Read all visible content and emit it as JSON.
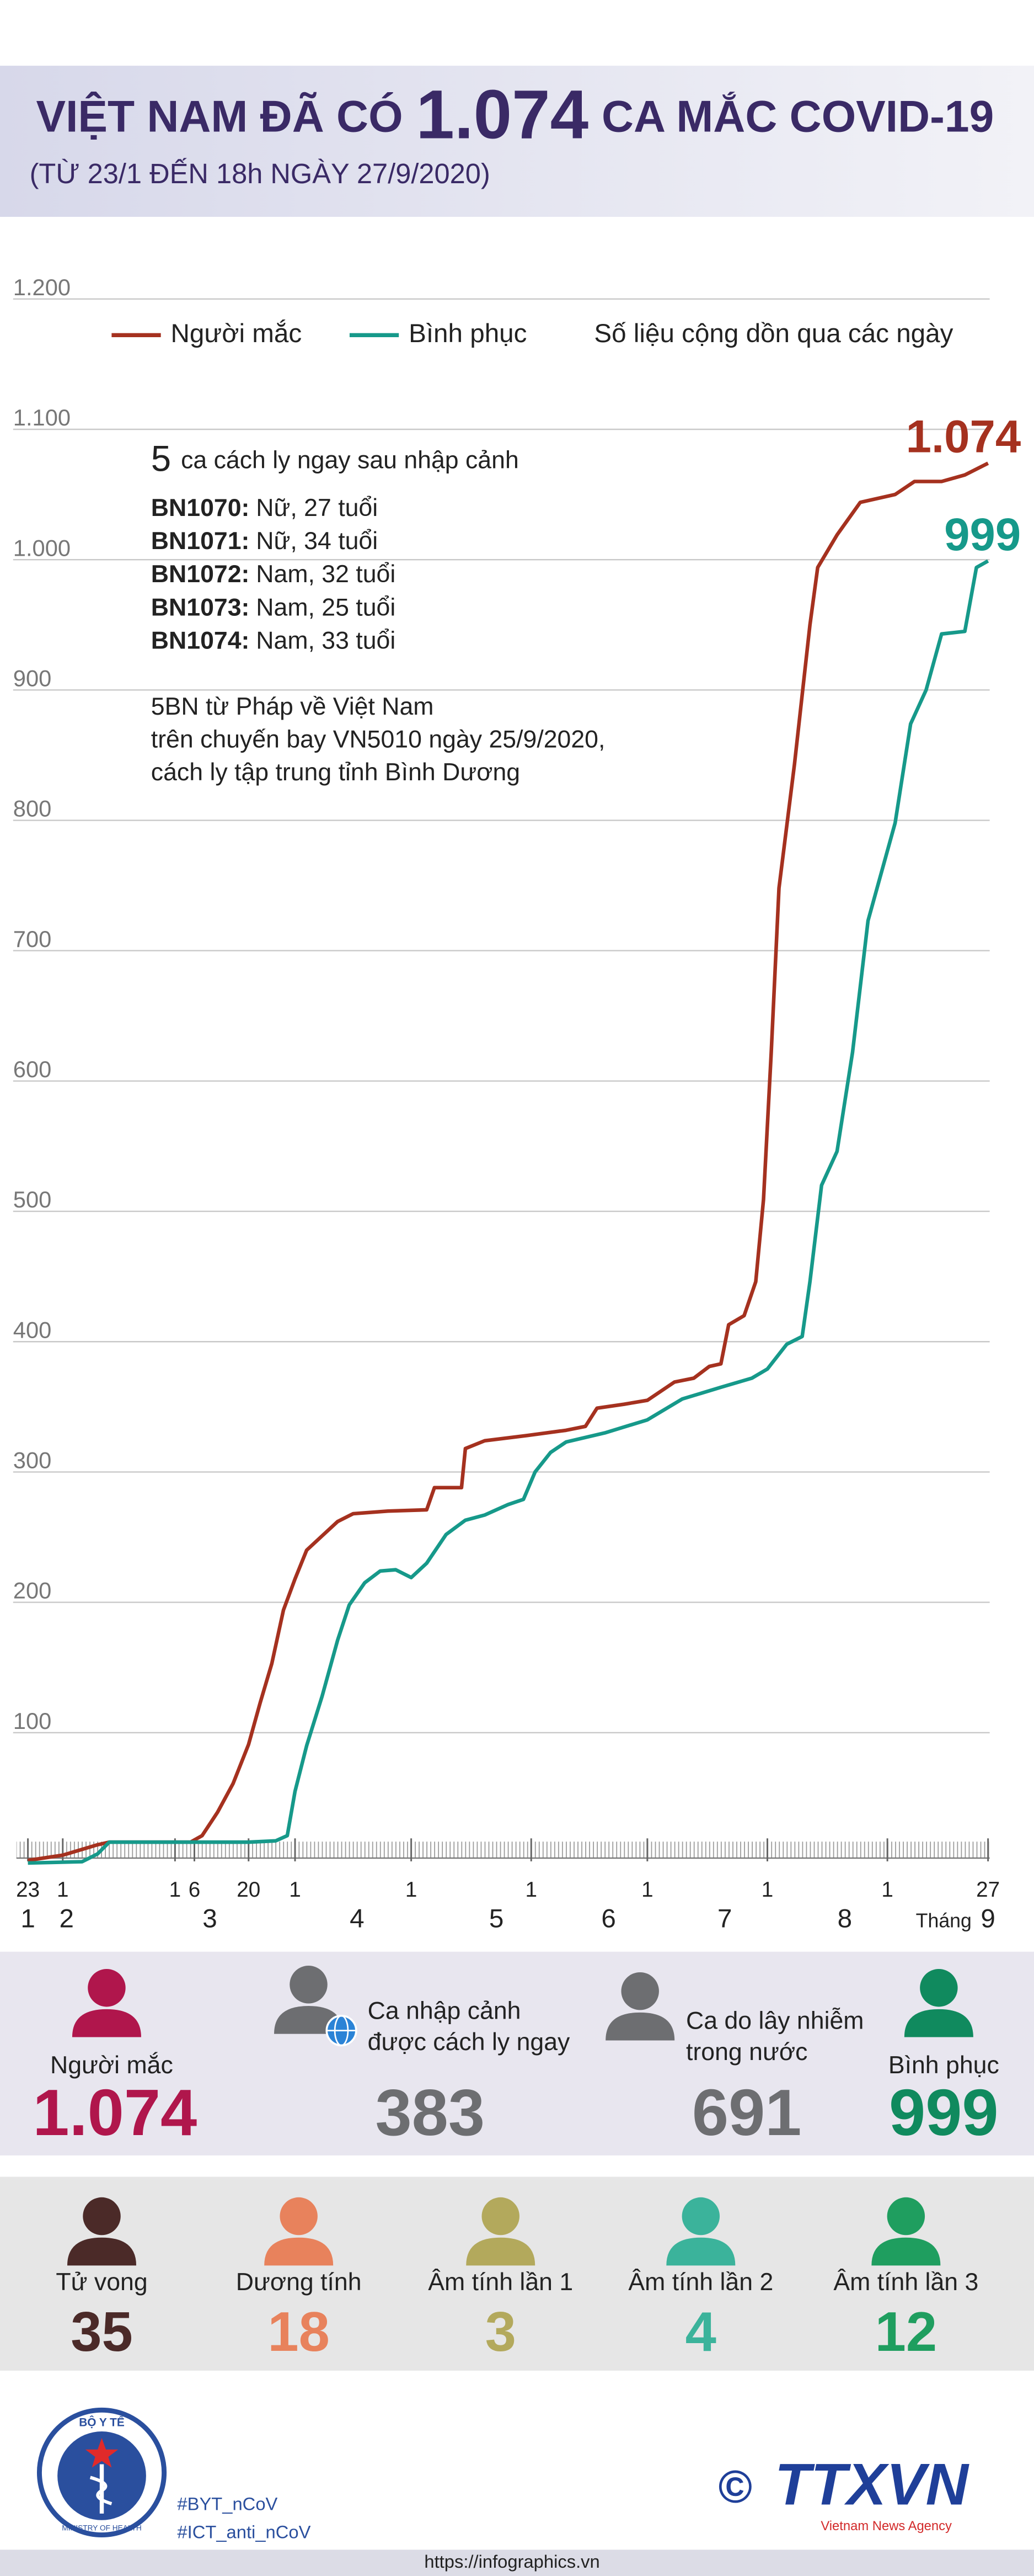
{
  "header": {
    "title_prefix": "VIỆT NAM ĐÃ CÓ",
    "title_number": "1.074",
    "title_suffix": "CA MẮC COVID-19",
    "subtitle": "(TỪ 23/1 ĐẾN 18h NGÀY 27/9/2020)"
  },
  "chart_data": {
    "type": "line",
    "note": "Số liệu cộng dồn qua các ngày",
    "xlim": [
      "23/1",
      "27/9"
    ],
    "xticks": [
      {
        "value": "23/1",
        "label": "23"
      },
      {
        "value": "1/2",
        "label": "1"
      },
      {
        "value": "1/3",
        "label": "1"
      },
      {
        "value": "6/3",
        "label": "6"
      },
      {
        "value": "20/3",
        "label": "20"
      },
      {
        "value": "1/4",
        "label": "1"
      },
      {
        "value": "1/5",
        "label": "1"
      },
      {
        "value": "1/6",
        "label": "1"
      },
      {
        "value": "1/7",
        "label": "1"
      },
      {
        "value": "1/8",
        "label": "1"
      },
      {
        "value": "1/9",
        "label": "1"
      },
      {
        "value": "27/9",
        "label": "27"
      }
    ],
    "month_ticks": [
      {
        "value": "23/1",
        "label": "1"
      },
      {
        "value": "2/2",
        "label": "2"
      },
      {
        "value": "10/3",
        "label": "3"
      },
      {
        "value": "17/4",
        "label": "4"
      },
      {
        "value": "23/5",
        "label": "5"
      },
      {
        "value": "21/6",
        "label": "6"
      },
      {
        "value": "21/7",
        "label": "7"
      },
      {
        "value": "21/8",
        "label": "8"
      },
      {
        "value": "27/9",
        "label": "9"
      }
    ],
    "month_axis_label": "Tháng",
    "ylim": [
      0,
      1200
    ],
    "yticks": [
      100,
      200,
      300,
      400,
      500,
      600,
      700,
      800,
      900,
      {
        "value": 1000,
        "label": "1.000"
      },
      {
        "value": 1100,
        "label": "1.100"
      },
      {
        "value": 1200,
        "label": "1.200"
      }
    ],
    "grid": true,
    "annotation": {
      "count": "5",
      "heading": "ca cách ly ngay sau nhập cảnh",
      "patients": [
        {
          "id": "BN1070:",
          "detail": "Nữ, 27 tuổi"
        },
        {
          "id": "BN1071:",
          "detail": "Nữ, 34 tuổi"
        },
        {
          "id": "BN1072:",
          "detail": "Nam, 32 tuổi"
        },
        {
          "id": "BN1073:",
          "detail": "Nam, 25 tuổi"
        },
        {
          "id": "BN1074:",
          "detail": "Nam, 33 tuổi"
        }
      ],
      "text": [
        "5BN từ Pháp về Việt Nam",
        "trên chuyến bay VN5010 ngày 25/9/2020,",
        "cách ly tập trung tỉnh Bình Dương"
      ]
    },
    "series": [
      {
        "name": "Người mắc",
        "color": "#a5311f",
        "x": [
          "23/1",
          "1/2",
          "10/2",
          "13/2",
          "5/3",
          "8/3",
          "12/3",
          "16/3",
          "20/3",
          "23/3",
          "26/3",
          "29/3",
          "1/4",
          "4/4",
          "8/4",
          "12/4",
          "16/4",
          "25/4",
          "5/5",
          "7/5",
          "14/5",
          "15/5",
          "20/5",
          "31/5",
          "10/6",
          "15/6",
          "18/6",
          "25/6",
          "1/7",
          "8/7",
          "13/7",
          "17/7",
          "20/7",
          "22/7",
          "26/7",
          "29/7",
          "31/7",
          "2/8",
          "4/8",
          "8/8",
          "12/8",
          "14/8",
          "19/8",
          "25/8",
          "3/9",
          "8/9",
          "15/9",
          "21/9",
          "27/9"
        ],
        "values": [
          2,
          6,
          14,
          16,
          16,
          21,
          39,
          61,
          91,
          123,
          153,
          194,
          218,
          240,
          251,
          262,
          268,
          270,
          271,
          288,
          288,
          318,
          324,
          328,
          332,
          335,
          349,
          352,
          355,
          369,
          372,
          381,
          383,
          413,
          420,
          446,
          509,
          622,
          748,
          843,
          950,
          994,
          1019,
          1044,
          1050,
          1060,
          1060,
          1065,
          1074
        ],
        "value_labels": [
          null,
          null,
          null,
          null,
          null,
          null,
          null,
          null,
          null,
          null,
          null,
          null,
          null,
          null,
          null,
          null,
          null,
          null,
          null,
          null,
          null,
          null,
          null,
          null,
          null,
          null,
          null,
          null,
          null,
          null,
          null,
          null,
          null,
          null,
          null,
          null,
          null,
          null,
          null,
          null,
          null,
          null,
          null,
          null,
          null,
          null,
          null,
          null,
          "1.074"
        ]
      },
      {
        "name": "Bình phục",
        "color": "#16998a",
        "x": [
          "23/1",
          "6/2",
          "10/2",
          "13/2",
          "20/3",
          "27/3",
          "30/3",
          "1/4",
          "4/4",
          "8/4",
          "12/4",
          "15/4",
          "19/4",
          "23/4",
          "27/4",
          "1/5",
          "5/5",
          "10/5",
          "15/5",
          "20/5",
          "26/5",
          "30/5",
          "2/6",
          "6/6",
          "10/6",
          "20/6",
          "1/7",
          "10/7",
          "20/7",
          "28/7",
          "1/8",
          "6/8",
          "10/8",
          "12/8",
          "15/8",
          "19/8",
          "23/8",
          "27/8",
          "3/9",
          "7/9",
          "11/9",
          "15/9",
          "21/9",
          "24/9",
          "27/9"
        ],
        "values": [
          0,
          1,
          7,
          16,
          16,
          17,
          21,
          55,
          90,
          128,
          171,
          198,
          215,
          224,
          225,
          219,
          230,
          252,
          263,
          267,
          275,
          279,
          300,
          315,
          323,
          330,
          340,
          356,
          365,
          372,
          379,
          398,
          404,
          446,
          520,
          546,
          622,
          723,
          798,
          874,
          900,
          943,
          945,
          994,
          999
        ]
      }
    ]
  },
  "summary": {
    "items": [
      {
        "label_lines": [
          "Người mắc"
        ],
        "value": "1.074",
        "color": "#b0164c"
      },
      {
        "label_lines": [
          "Ca nhập cảnh",
          "được cách ly ngay"
        ],
        "value": "383",
        "color": "#6d6e71"
      },
      {
        "label_lines": [
          "Ca do lây nhiễm",
          "trong nước"
        ],
        "value": "691",
        "color": "#6d6e71"
      },
      {
        "label_lines": [
          "Bình phục"
        ],
        "value": "999",
        "color": "#108a5e"
      }
    ]
  },
  "status": {
    "items": [
      {
        "label": "Tử vong",
        "value": "35",
        "color": "#4b2a28"
      },
      {
        "label": "Dương tính",
        "value": "18",
        "color": "#e8825c"
      },
      {
        "label": "Âm tính lần 1",
        "value": "3",
        "color": "#b3a95c"
      },
      {
        "label": "Âm tính lần 2",
        "value": "4",
        "color": "#3bb39b"
      },
      {
        "label": "Âm tính lần 3",
        "value": "12",
        "color": "#1f9e5f"
      }
    ]
  },
  "footer": {
    "ministry": "BỘ Y TẾ",
    "ministry_en": "MINISTRY OF HEALTH",
    "hashtags": [
      "#BYT_nCoV",
      "#ICT_anti_nCoV"
    ],
    "copyright": "©",
    "agency": "TTXVN",
    "agency_en": "Vietnam News Agency",
    "url": "https://infographics.vn"
  }
}
